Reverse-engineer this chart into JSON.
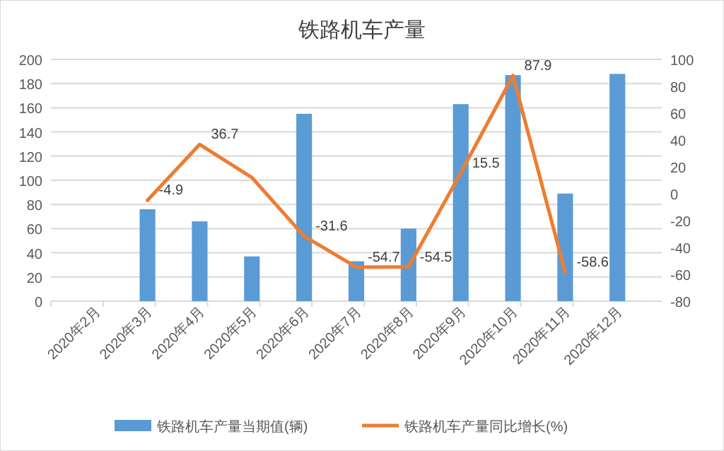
{
  "chart_data": {
    "type": "bar",
    "title": "铁路机车产量",
    "categories": [
      "2020年2月",
      "2020年3月",
      "2020年4月",
      "2020年5月",
      "2020年6月",
      "2020年7月",
      "2020年8月",
      "2020年9月",
      "2020年10月",
      "2020年11月",
      "2020年12月"
    ],
    "series": [
      {
        "name": "铁路机车产量当期值(辆)",
        "color": "#5b9bd5",
        "values": [
          null,
          76,
          66,
          37,
          155,
          33,
          60,
          163,
          187,
          89,
          188
        ]
      },
      {
        "name": "铁路机车产量同比增长(%)",
        "type": "line",
        "axis": "y2",
        "color": "#ed7d31",
        "values": [
          null,
          -4.9,
          36.7,
          12,
          -31.6,
          -54.7,
          -54.5,
          15.5,
          87.9,
          -58.6,
          null
        ],
        "value_labels": [
          null,
          "-4.9",
          "36.7",
          null,
          "-31.6",
          "-54.7",
          "-54.5",
          "15.5",
          "87.9",
          "-58.6",
          null
        ]
      }
    ],
    "ylim": [
      0,
      200
    ],
    "yticks": [
      0,
      20,
      40,
      60,
      80,
      100,
      120,
      140,
      160,
      180,
      200
    ],
    "y2lim": [
      -80,
      100
    ],
    "y2ticks": [
      -80,
      -60,
      -40,
      -20,
      0,
      20,
      40,
      60,
      80,
      100
    ],
    "grid": "y",
    "legend": "bottom",
    "marker": "none",
    "line_style": "solid"
  }
}
